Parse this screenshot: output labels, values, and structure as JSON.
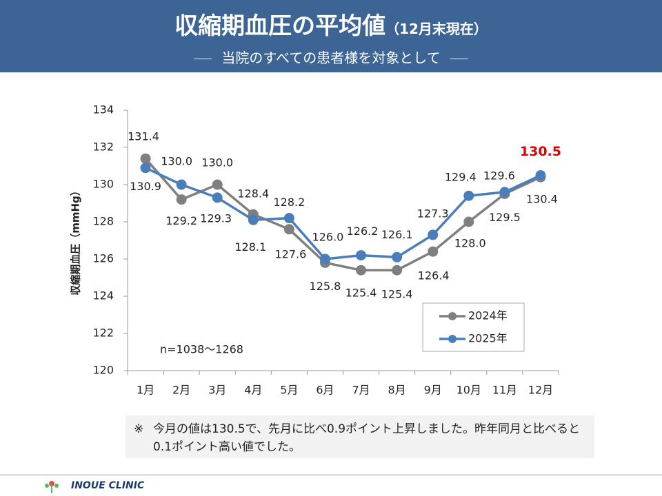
{
  "chart_data": {
    "type": "line",
    "title": "収縮期血圧の平均値",
    "title_note": "（12月末現在）",
    "subtitle": "当院のすべての患者様を対象として",
    "y_label": "収縮期血圧（mmHg）",
    "annotation": "n=1038～1268",
    "categories": [
      "1月",
      "2月",
      "3月",
      "4月",
      "5月",
      "6月",
      "7月",
      "8月",
      "9月",
      "10月",
      "11月",
      "12月"
    ],
    "series": [
      {
        "name": "2024年",
        "color": "#7f7f7f",
        "values": [
          131.4,
          129.2,
          130,
          128.4,
          127.6,
          125.8,
          125.4,
          125.4,
          126.4,
          128,
          129.5,
          130.4
        ],
        "value_labels": [
          "131.4",
          "129.2",
          "130.0",
          "128.4",
          "127.6",
          "125.8",
          "125.4",
          "125.4",
          "126.4",
          "128.0",
          "129.5",
          "130.4"
        ]
      },
      {
        "name": "2025年",
        "color": "#4a7ebb",
        "values": [
          130.9,
          130,
          129.3,
          128.1,
          128.2,
          126,
          126.2,
          126.1,
          127.3,
          129.4,
          129.6,
          130.5
        ],
        "value_labels": [
          "130.9",
          "130.0",
          "129.3",
          "128.1",
          "128.2",
          "126.0",
          "126.2",
          "126.1",
          "127.3",
          "129.4",
          "129.6",
          "130.5"
        ]
      }
    ],
    "ylim": [
      120,
      134
    ],
    "yticks": [
      120,
      122,
      124,
      126,
      128,
      130,
      132,
      134
    ],
    "grid": false,
    "legend": "lower right"
  },
  "note": {
    "mark": "※",
    "text": "今月の値は130.5で、先月に比べ0.9ポイント上昇しました。昨年同月と比べると0.1ポイント高い値でした。"
  },
  "footer": {
    "clinic": "INOUE CLINIC"
  }
}
